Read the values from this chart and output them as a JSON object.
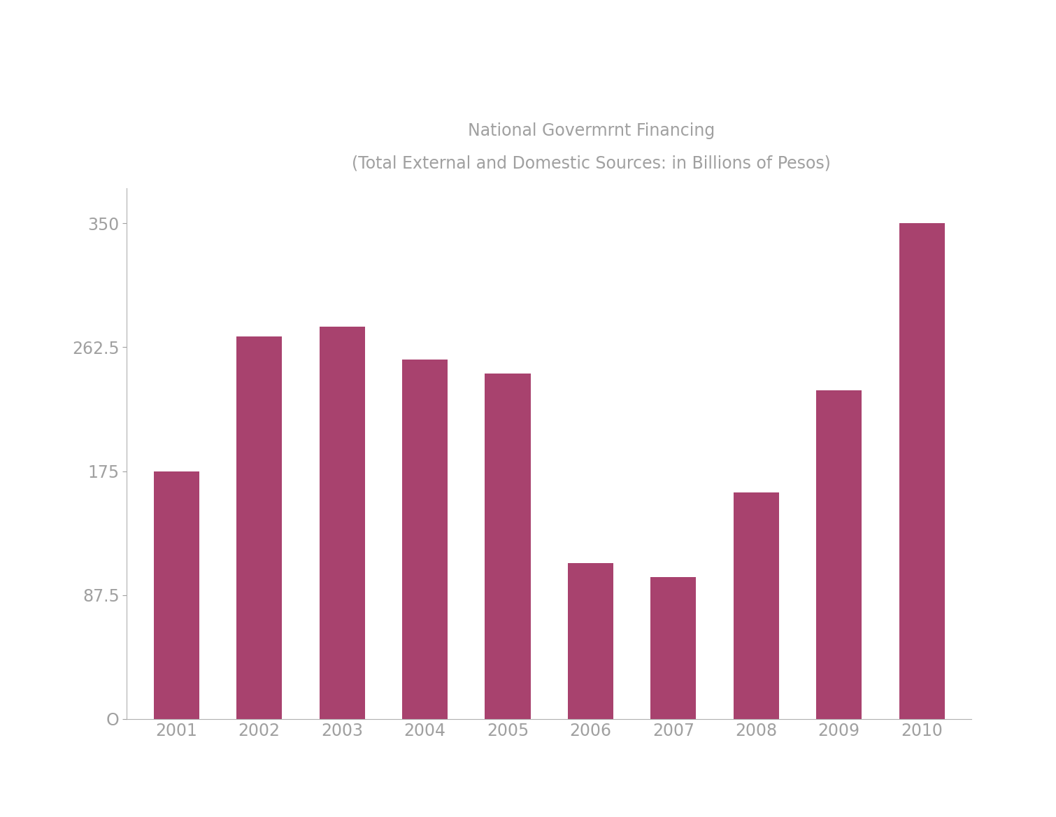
{
  "title_line1": "National Govermrnt Financing",
  "title_line2": "(Total External and Domestic Sources: in Billions of Pesos)",
  "categories": [
    "2001",
    "2002",
    "2003",
    "2004",
    "2005",
    "2006",
    "2007",
    "2008",
    "2009",
    "2010"
  ],
  "values": [
    175,
    270,
    277,
    254,
    244,
    110,
    100,
    160,
    232,
    350
  ],
  "bar_color": "#a8426e",
  "background_color": "#ffffff",
  "title_color": "#a0a0a0",
  "axis_color": "#b0b0b0",
  "tick_color": "#a0a0a0",
  "yticks": [
    0,
    87.5,
    175,
    262.5,
    350
  ],
  "ytick_labels": [
    "O",
    "87.5",
    "175",
    "262.5",
    "350"
  ],
  "ylim": [
    0,
    375
  ],
  "title_fontsize": 17,
  "tick_fontsize": 17,
  "bar_width": 0.55
}
